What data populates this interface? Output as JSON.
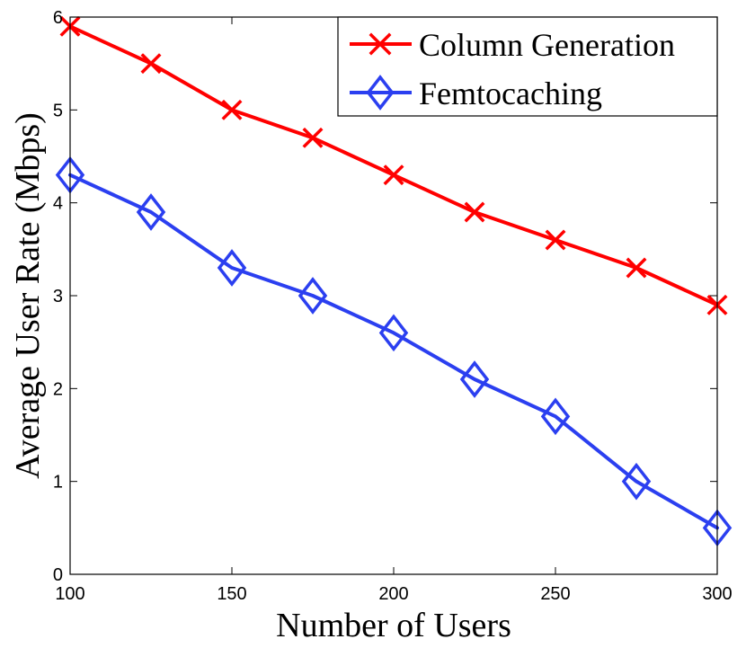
{
  "chart_data": {
    "type": "line",
    "title": "",
    "xlabel": "Number of Users",
    "ylabel": "Average User Rate (Mbps)",
    "xlim": [
      100,
      300
    ],
    "ylim": [
      0,
      6
    ],
    "xticks": [
      100,
      150,
      200,
      250,
      300
    ],
    "yticks": [
      0,
      1,
      2,
      3,
      4,
      5,
      6
    ],
    "grid": false,
    "legend_position": "top-right",
    "x": [
      100,
      125,
      150,
      175,
      200,
      225,
      250,
      275,
      300
    ],
    "series": [
      {
        "name": "Column Generation",
        "color": "#ff0000",
        "marker": "x",
        "values": [
          5.9,
          5.5,
          5.0,
          4.7,
          4.3,
          3.9,
          3.6,
          3.3,
          2.9
        ]
      },
      {
        "name": "Femtocaching",
        "color": "#2b3ff0",
        "marker": "diamond",
        "values": [
          4.3,
          3.9,
          3.3,
          3.0,
          2.6,
          2.1,
          1.7,
          1.0,
          0.5
        ]
      }
    ]
  }
}
